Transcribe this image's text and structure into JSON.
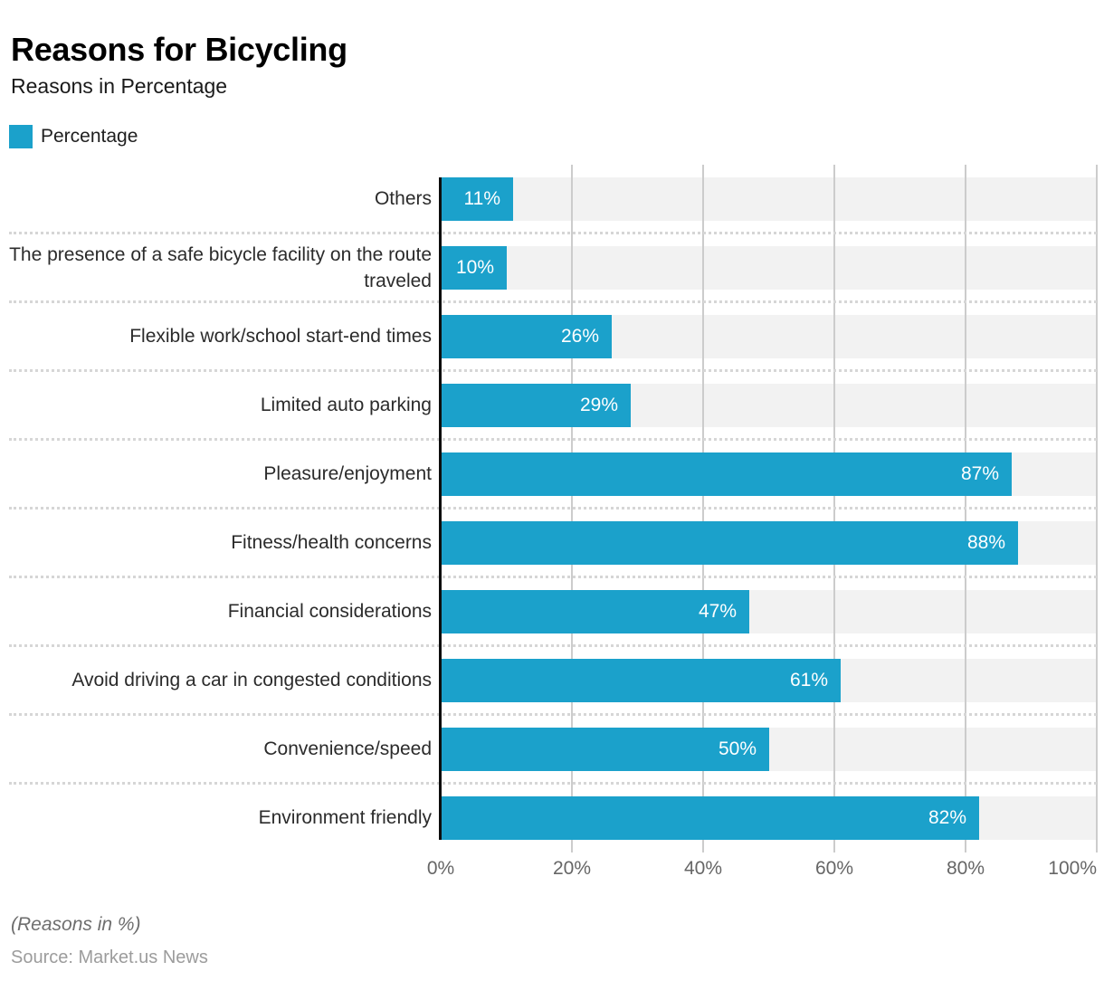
{
  "header": {
    "title": "Reasons for Bicycling",
    "subtitle": "Reasons in Percentage"
  },
  "legend": {
    "label": "Percentage",
    "color": "#1BA1CB"
  },
  "chart_data": {
    "type": "bar",
    "orientation": "horizontal",
    "title": "Reasons for Bicycling",
    "subtitle": "Reasons in Percentage",
    "series_name": "Percentage",
    "categories": [
      "Others",
      "The presence of a safe bicycle facility on the route traveled",
      "Flexible work/school start-end times",
      "Limited auto parking",
      "Pleasure/enjoyment",
      "Fitness/health concerns",
      "Financial considerations",
      "Avoid driving a car in congested conditions",
      "Convenience/speed",
      "Environment friendly"
    ],
    "values": [
      11,
      10,
      26,
      29,
      87,
      88,
      47,
      61,
      50,
      82
    ],
    "value_suffix": "%",
    "xlim": [
      0,
      100
    ],
    "x_ticks": [
      "0%",
      "20%",
      "40%",
      "60%",
      "80%",
      "100%"
    ],
    "grid": "vertical solid gridlines; dotted horizontal row separators",
    "legend_position": "top-left",
    "bar_color": "#1BA1CB",
    "track_color": "#F2F2F2",
    "gridline_color": "#CCCCCC",
    "axis_line_color": "#0D0D0D"
  },
  "footer": {
    "note": "(Reasons in %)",
    "source": "Source: Market.us News"
  }
}
